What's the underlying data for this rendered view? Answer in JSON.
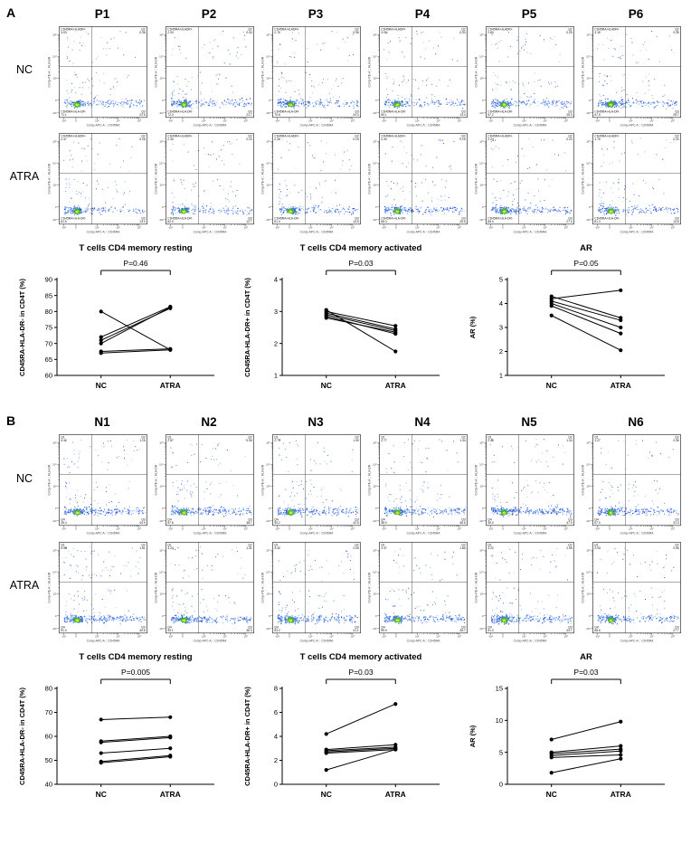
{
  "figure": {
    "flow_tick_labels": {
      "x": [
        "-10³",
        "0",
        "10³",
        "10⁴",
        "10⁵"
      ],
      "y": [
        "-10³",
        "0",
        "10³",
        "10⁴",
        "10⁵"
      ]
    },
    "panels": [
      {
        "label": "A",
        "columns": [
          "P1",
          "P2",
          "P3",
          "P4",
          "P5",
          "P6"
        ],
        "flow_axes": {
          "x": "Comp-APC-A :: CD45RA",
          "y": "Comp-PE-A :: HLA-DR"
        },
        "flow_rows": [
          {
            "label": "NC",
            "plots": [
              {
                "tl_name": "CD45RA-HLADR+",
                "tl": "3.03",
                "tr_name": "Q2",
                "tr": "0.38",
                "bl_name": "CD45RA-HLA-DR-",
                "bl": "71.1",
                "br_name": "Q3",
                "br": "22.5",
                "seed": 101
              },
              {
                "tl_name": "CD45RA-HLADR+",
                "tl": "2.93",
                "tr_name": "Q2",
                "tr": "0.44",
                "bl_name": "CD45RA-HLA-DR-",
                "bl": "72.0",
                "br_name": "Q3",
                "br": "21.7",
                "seed": 102
              },
              {
                "tl_name": "CD45RA-HLADR+",
                "tl": "2.75",
                "tr_name": "Q2",
                "tr": "0.36",
                "bl_name": "CD45RA-HLA-DR-",
                "bl": "70.5",
                "br_name": "Q3",
                "br": "24.3",
                "seed": 103
              },
              {
                "tl_name": "CD45RA-HLADR+",
                "tl": "3.00",
                "tr_name": "Q2",
                "tr": "0.33",
                "bl_name": "CD45RA-HLA-DR-",
                "bl": "80.1",
                "br_name": "Q3",
                "br": "13.4",
                "seed": 104
              },
              {
                "tl_name": "CD45RA-HLADR+",
                "tl": "2.80",
                "tr_name": "Q2",
                "tr": "0.25",
                "bl_name": "CD45RA-HLA-DR-",
                "bl": "67.2",
                "br_name": "Q3",
                "br": "26.3",
                "seed": 105
              },
              {
                "tl_name": "CD45RA-HLADR+",
                "tl": "3.10",
                "tr_name": "Q2",
                "tr": "0.35",
                "bl_name": "CD45RA-HLA-DR-",
                "bl": "67.5",
                "br_name": "Q3",
                "br": "26.7",
                "seed": 106
              }
            ]
          },
          {
            "label": "ATRA",
            "plots": [
              {
                "tl_name": "CD45RA-HLADR+",
                "tl": "2.47",
                "tr_name": "Q2",
                "tr": "0.26",
                "bl_name": "CD45RA-HLA-DR-",
                "bl": "81.5",
                "br_name": "Q3",
                "br": "13.0",
                "seed": 111
              },
              {
                "tl_name": "CD45RA-HLADR+",
                "tl": "2.35",
                "tr_name": "Q2",
                "tr": "0.10",
                "bl_name": "CD45RA-HLA-DR-",
                "bl": "82.0",
                "br_name": "Q3",
                "br": "12.7",
                "seed": 112
              },
              {
                "tl_name": "CD45RA-HLADR+",
                "tl": "2.28",
                "tr_name": "Q2",
                "tr": "0.15",
                "bl_name": "CD45RA-HLA-DR-",
                "bl": "81.0",
                "br_name": "Q3",
                "br": "14.5",
                "seed": 113
              },
              {
                "tl_name": "CD45RA-HLADR+",
                "tl": "2.40",
                "tr_name": "Q2",
                "tr": "0.15",
                "bl_name": "CD45RA-HLA-DR-",
                "bl": "68.3",
                "br_name": "Q3",
                "br": "26.5",
                "seed": 114
              },
              {
                "tl_name": "CD45RA-HLADR+",
                "tl": "2.24",
                "tr_name": "Q2",
                "tr": "0.23",
                "bl_name": "CD45RA-HLA-DR-",
                "bl": "68.0",
                "br_name": "Q3",
                "br": "27.0",
                "seed": 115
              },
              {
                "tl_name": "CD45RA-HLADR+",
                "tl": "1.75",
                "tr_name": "Q2",
                "tr": "0.20",
                "bl_name": "CD45RA-HLA-DR-",
                "bl": "81.3",
                "br_name": "Q3",
                "br": "14.8",
                "seed": 116
              }
            ]
          }
        ]
      },
      {
        "label": "B",
        "columns": [
          "N1",
          "N2",
          "N3",
          "N4",
          "N5",
          "N6"
        ],
        "flow_axes": {
          "x": "Comp-APC-A :: CD45RA",
          "y": "Comp-PE-A :: HLA-DR"
        },
        "flow_rows": [
          {
            "label": "NC",
            "plots": [
              {
                "tl_name": "Q1",
                "tl": "4.46",
                "tr_name": "Q2",
                "tr": "1.15",
                "bl_name": "Q4",
                "bl": "49.4",
                "br_name": "Q3",
                "br": "44.9",
                "seed": 201
              },
              {
                "tl_name": "Q1",
                "tl": "2.57",
                "tr_name": "Q2",
                "tr": "1.08",
                "bl_name": "Q4",
                "bl": "57.6",
                "br_name": "Q3",
                "br": "38.7",
                "seed": 202
              },
              {
                "tl_name": "Q1",
                "tl": "2.73",
                "tr_name": "Q2",
                "tr": "1.49",
                "bl_name": "Q4",
                "bl": "53.2",
                "br_name": "Q3",
                "br": "42.5",
                "seed": 203
              },
              {
                "tl_name": "Q1",
                "tl": "2.77",
                "tr_name": "Q2",
                "tr": "1.44",
                "bl_name": "Q4",
                "bl": "58.9",
                "br_name": "Q3",
                "br": "36.8",
                "seed": 204
              },
              {
                "tl_name": "Q1",
                "tl": "2.48",
                "tr_name": "Q2",
                "tr": "1.44",
                "bl_name": "Q4",
                "bl": "49.0",
                "br_name": "Q3",
                "br": "47.0",
                "seed": 205
              },
              {
                "tl_name": "Q1",
                "tl": "1.27",
                "tr_name": "Q2",
                "tr": "0.36",
                "bl_name": "Q4",
                "bl": "67.0",
                "br_name": "Q3",
                "br": "31.3",
                "seed": 206
              }
            ]
          },
          {
            "label": "ATRA",
            "plots": [
              {
                "tl_name": "Q1",
                "tl": "6.56",
                "tr_name": "Q2",
                "tr": "1.81",
                "bl_name": "Q4",
                "bl": "51.0",
                "br_name": "Q3",
                "br": "40.6",
                "seed": 211
              },
              {
                "tl_name": "Q1",
                "tl": "3.24",
                "tr_name": "Q2",
                "tr": "1.31",
                "bl_name": "Q4",
                "bl": "59.1",
                "br_name": "Q3",
                "br": "36.3",
                "seed": 212
              },
              {
                "tl_name": "Q1",
                "tl": "3.40",
                "tr_name": "Q2",
                "tr": "2.28",
                "bl_name": "Q4",
                "bl": "53.2",
                "br_name": "Q3",
                "br": "41.1",
                "seed": 213
              },
              {
                "tl_name": "Q1",
                "tl": "2.47",
                "tr_name": "Q2",
                "tr": "1.86",
                "bl_name": "Q4",
                "bl": "59.9",
                "br_name": "Q3",
                "br": "35.7",
                "seed": 214
              },
              {
                "tl_name": "Q1",
                "tl": "3.22",
                "tr_name": "Q2",
                "tr": "2.08",
                "bl_name": "Q4",
                "bl": "51.0",
                "br_name": "Q3",
                "br": "43.7",
                "seed": 215
              },
              {
                "tl_name": "Q1",
                "tl": "2.93",
                "tr_name": "Q2",
                "tr": "0.96",
                "bl_name": "Q4",
                "bl": "68.6",
                "br_name": "Q3",
                "br": "27.7",
                "seed": 216
              }
            ]
          }
        ]
      }
    ]
  },
  "chart_data": [
    {
      "type": "line",
      "panel": "A",
      "title": "T cells CD4 memory resting",
      "p_label": "P=0.46",
      "ylabel": "CD45RA-HLA-DR- in CD4T (%)",
      "categories": [
        "NC",
        "ATRA"
      ],
      "ylim": [
        60,
        90
      ],
      "yticks": [
        60,
        65,
        70,
        75,
        80,
        85,
        90
      ],
      "series": [
        {
          "name": "P1",
          "values": [
            80,
            68
          ]
        },
        {
          "name": "P2",
          "values": [
            72,
            81.5
          ]
        },
        {
          "name": "P3",
          "values": [
            71,
            81
          ]
        },
        {
          "name": "P4",
          "values": [
            70,
            81.3
          ]
        },
        {
          "name": "P5",
          "values": [
            67.5,
            68.3
          ]
        },
        {
          "name": "P6",
          "values": [
            67,
            68
          ]
        }
      ]
    },
    {
      "type": "line",
      "panel": "A",
      "title": "T cells CD4 memory activated",
      "p_label": "P=0.03",
      "ylabel": "CD45RA-HLA-DR+ in CD4T (%)",
      "categories": [
        "NC",
        "ATRA"
      ],
      "ylim": [
        1,
        4
      ],
      "yticks": [
        1,
        2,
        3,
        4
      ],
      "series": [
        {
          "name": "P1",
          "values": [
            3.0,
            2.55
          ]
        },
        {
          "name": "P2",
          "values": [
            2.95,
            2.45
          ]
        },
        {
          "name": "P3",
          "values": [
            2.9,
            2.4
          ]
        },
        {
          "name": "P4",
          "values": [
            2.85,
            2.3
          ]
        },
        {
          "name": "P5",
          "values": [
            2.8,
            2.35
          ]
        },
        {
          "name": "P6",
          "values": [
            3.05,
            1.75
          ]
        }
      ]
    },
    {
      "type": "line",
      "panel": "A",
      "title": "AR",
      "p_label": "P=0.05",
      "ylabel": "AR (%)",
      "categories": [
        "NC",
        "ATRA"
      ],
      "ylim": [
        1,
        5
      ],
      "yticks": [
        1,
        2,
        3,
        4,
        5
      ],
      "series": [
        {
          "name": "P1",
          "values": [
            4.2,
            4.55
          ]
        },
        {
          "name": "P2",
          "values": [
            4.3,
            3.4
          ]
        },
        {
          "name": "P3",
          "values": [
            4.1,
            3.3
          ]
        },
        {
          "name": "P4",
          "values": [
            4.0,
            3.0
          ]
        },
        {
          "name": "P5",
          "values": [
            3.9,
            2.75
          ]
        },
        {
          "name": "P6",
          "values": [
            3.5,
            2.05
          ]
        }
      ]
    },
    {
      "type": "line",
      "panel": "B",
      "title": "T cells CD4 memory resting",
      "p_label": "P=0.005",
      "ylabel": "CD45RA-HLA-DR- in CD4T (%)",
      "categories": [
        "NC",
        "ATRA"
      ],
      "ylim": [
        40,
        80
      ],
      "yticks": [
        40,
        50,
        60,
        70,
        80
      ],
      "series": [
        {
          "name": "N1",
          "values": [
            67,
            68
          ]
        },
        {
          "name": "N2",
          "values": [
            58,
            60
          ]
        },
        {
          "name": "N3",
          "values": [
            57.5,
            59.5
          ]
        },
        {
          "name": "N4",
          "values": [
            53,
            55
          ]
        },
        {
          "name": "N5",
          "values": [
            49.5,
            52
          ]
        },
        {
          "name": "N6",
          "values": [
            49,
            51.5
          ]
        }
      ]
    },
    {
      "type": "line",
      "panel": "B",
      "title": "T cells CD4 memory activated",
      "p_label": "P=0.03",
      "ylabel": "CD45RA-HLA-DR+ in CD4T (%)",
      "categories": [
        "NC",
        "ATRA"
      ],
      "ylim": [
        0,
        8
      ],
      "yticks": [
        0,
        2,
        4,
        6,
        8
      ],
      "series": [
        {
          "name": "N1",
          "values": [
            4.2,
            6.7
          ]
        },
        {
          "name": "N2",
          "values": [
            2.9,
            3.3
          ]
        },
        {
          "name": "N3",
          "values": [
            2.8,
            3.1
          ]
        },
        {
          "name": "N4",
          "values": [
            2.7,
            3.0
          ]
        },
        {
          "name": "N5",
          "values": [
            2.6,
            2.9
          ]
        },
        {
          "name": "N6",
          "values": [
            1.2,
            2.9
          ]
        }
      ]
    },
    {
      "type": "line",
      "panel": "B",
      "title": "AR",
      "p_label": "P=0.03",
      "ylabel": "AR (%)",
      "categories": [
        "NC",
        "ATRA"
      ],
      "ylim": [
        0,
        15
      ],
      "yticks": [
        0,
        5,
        10,
        15
      ],
      "series": [
        {
          "name": "N1",
          "values": [
            7.0,
            9.8
          ]
        },
        {
          "name": "N2",
          "values": [
            5.0,
            6.0
          ]
        },
        {
          "name": "N3",
          "values": [
            4.8,
            5.5
          ]
        },
        {
          "name": "N4",
          "values": [
            4.5,
            5.2
          ]
        },
        {
          "name": "N5",
          "values": [
            4.2,
            4.6
          ]
        },
        {
          "name": "N6",
          "values": [
            1.8,
            4.0
          ]
        }
      ]
    }
  ]
}
